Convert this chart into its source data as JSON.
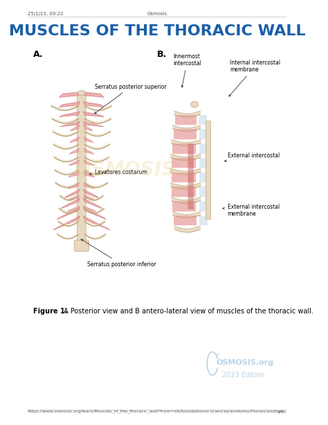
{
  "title": "MUSCLES OF THE THORACIC WALL",
  "title_color": "#1a5fa8",
  "title_fontsize": 16,
  "header_left": "25/1/23, 09:22",
  "header_center": "Osmosis",
  "header_color": "#555555",
  "header_fontsize": 5,
  "label_A": "A.",
  "label_B": "B.",
  "label_fontsize": 9,
  "caption_fontsize": 7,
  "footer_url": "https://www.osmosis.org/learn/Muscles_of_the_thoracic_wall?from=ob/foundational-sciences/anatomy/thorax/anatomy",
  "footer_page": "1/6",
  "footer_fontsize": 4.5,
  "osmosis_text": "OSMOSIS.org",
  "osmosis_year": "2023 Edition",
  "osmosis_color": "#b8d4e8",
  "bg_color": "#ffffff",
  "muscle_color_red": "#e8a0a0",
  "muscle_color_dark_red": "#c96060",
  "bone_color": "#e8d8c0",
  "membrane_color": "#c8dce8",
  "line_color": "#aaaaaa"
}
